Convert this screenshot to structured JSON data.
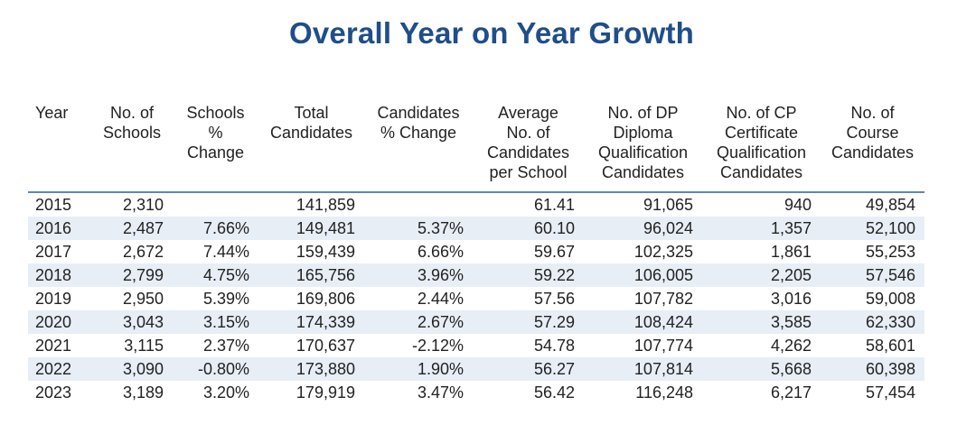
{
  "title": "Overall Year on Year Growth",
  "colors": {
    "title": "#1f4e89",
    "header_rule": "#5f86b3",
    "row_stripe": "#e8eef6"
  },
  "table": {
    "headers": [
      [
        "Year"
      ],
      [
        "No. of",
        "Schools"
      ],
      [
        "Schools",
        "%",
        "Change"
      ],
      [
        "Total",
        "Candidates"
      ],
      [
        "Candidates",
        "% Change"
      ],
      [
        "Average",
        "No. of",
        "Candidates",
        "per School"
      ],
      [
        "No. of DP",
        "Diploma",
        "Qualification",
        "Candidates"
      ],
      [
        "No. of CP",
        "Certificate",
        "Qualification",
        "Candidates"
      ],
      [
        "No. of",
        "Course",
        "Candidates"
      ]
    ],
    "rows": [
      [
        "2015",
        "2,310",
        "",
        "141,859",
        "",
        "61.41",
        "91,065",
        "940",
        "49,854"
      ],
      [
        "2016",
        "2,487",
        "7.66%",
        "149,481",
        "5.37%",
        "60.10",
        "96,024",
        "1,357",
        "52,100"
      ],
      [
        "2017",
        "2,672",
        "7.44%",
        "159,439",
        "6.66%",
        "59.67",
        "102,325",
        "1,861",
        "55,253"
      ],
      [
        "2018",
        "2,799",
        "4.75%",
        "165,756",
        "3.96%",
        "59.22",
        "106,005",
        "2,205",
        "57,546"
      ],
      [
        "2019",
        "2,950",
        "5.39%",
        "169,806",
        "2.44%",
        "57.56",
        "107,782",
        "3,016",
        "59,008"
      ],
      [
        "2020",
        "3,043",
        "3.15%",
        "174,339",
        "2.67%",
        "57.29",
        "108,424",
        "3,585",
        "62,330"
      ],
      [
        "2021",
        "3,115",
        "2.37%",
        "170,637",
        "-2.12%",
        "54.78",
        "107,774",
        "4,262",
        "58,601"
      ],
      [
        "2022",
        "3,090",
        "-0.80%",
        "173,880",
        "1.90%",
        "56.27",
        "107,814",
        "5,668",
        "60,398"
      ],
      [
        "2023",
        "3,189",
        "3.20%",
        "179,919",
        "3.47%",
        "56.42",
        "116,248",
        "6,217",
        "57,454"
      ]
    ]
  }
}
